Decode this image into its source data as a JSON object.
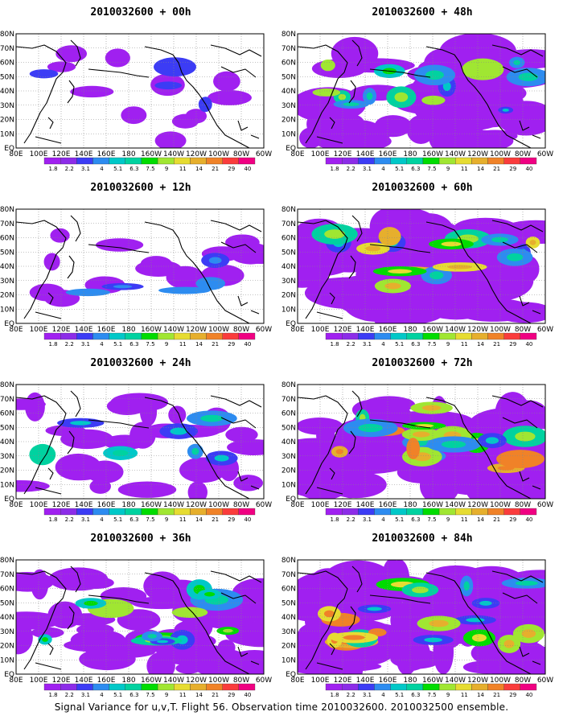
{
  "panels": [
    {
      "title": "2010032600 + 00h",
      "coverage": 0.05
    },
    {
      "title": "2010032600 + 48h",
      "coverage": 0.6
    },
    {
      "title": "2010032600 + 12h",
      "coverage": 0.12
    },
    {
      "title": "2010032600 + 60h",
      "coverage": 0.8
    },
    {
      "title": "2010032600 + 24h",
      "coverage": 0.3
    },
    {
      "title": "2010032600 + 72h",
      "coverage": 0.85
    },
    {
      "title": "2010032600 + 36h",
      "coverage": 0.55
    },
    {
      "title": "2010032600 + 84h",
      "coverage": 0.92
    }
  ],
  "lat_labels": [
    "80N",
    "70N",
    "60N",
    "50N",
    "40N",
    "30N",
    "20N",
    "10N",
    "EQ"
  ],
  "lon_labels": [
    "80E",
    "100E",
    "120E",
    "140E",
    "160E",
    "180",
    "160W",
    "140W",
    "120W",
    "100W",
    "80W",
    "60W"
  ],
  "colorbar": {
    "labels": [
      "1.8",
      "2.2",
      "3.1",
      "4",
      "5.1",
      "6.3",
      "7.5",
      "9",
      "11",
      "14",
      "21",
      "29",
      "40"
    ],
    "colors": [
      "#a020f0",
      "#8c2ce8",
      "#3c3cf5",
      "#2d8cf0",
      "#00c8c8",
      "#00d2a0",
      "#00dc00",
      "#a0e632",
      "#e6dc32",
      "#e6af2d",
      "#f08228",
      "#fa3c3c",
      "#f00082"
    ]
  },
  "footer": "Signal Variance for u,v,T. Flight 56. Observation time 2010032600. 2010032500 ensemble."
}
